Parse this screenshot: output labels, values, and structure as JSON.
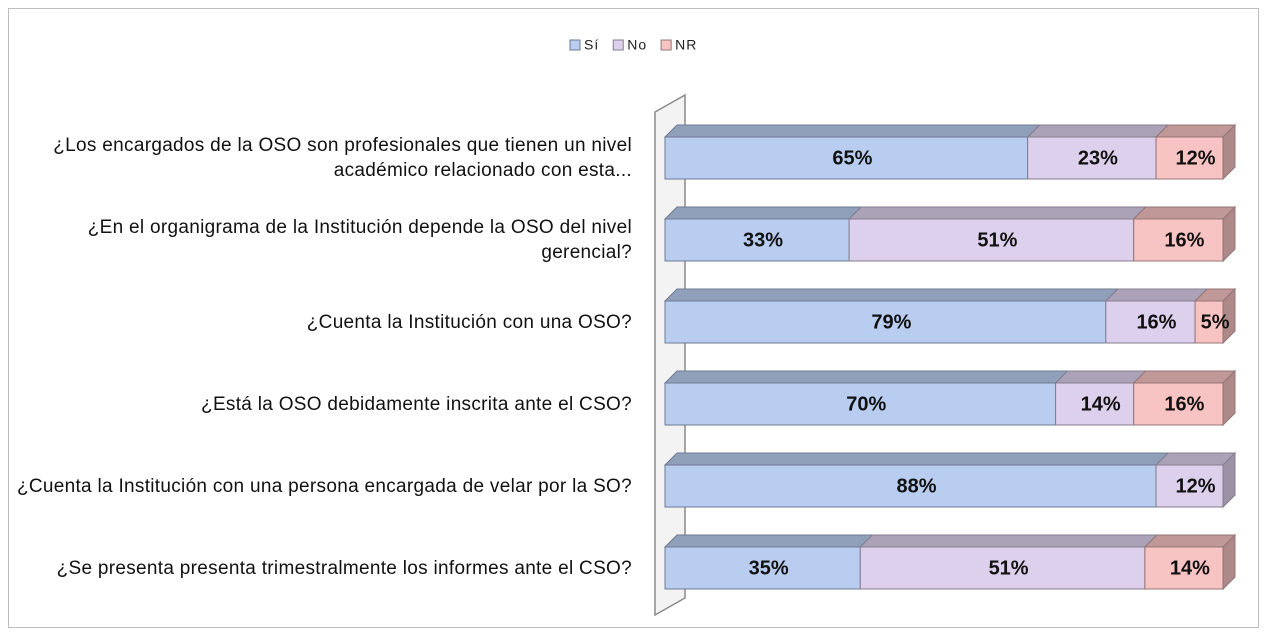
{
  "chart_data": {
    "type": "stacked-bar-horizontal",
    "categories": [
      "¿Los encargados de la OSO son profesionales que tienen un nivel académico relacionado con esta...",
      "¿En el organigrama de la Institución depende la OSO del nivel gerencial?",
      "¿Cuenta la Institución con una OSO?",
      "¿Está la OSO debidamente inscrita ante el CSO?",
      "¿Cuenta la Institución con una persona encargada de velar por la SO?",
      "¿Se presenta presenta trimestralmente los informes ante el CSO?"
    ],
    "series": [
      {
        "name": "Sí",
        "color": "#b9cdf0",
        "values": [
          65,
          33,
          79,
          70,
          88,
          35
        ],
        "value_labels": [
          "65%",
          "33%",
          "79%",
          "70%",
          "88%",
          "35%"
        ]
      },
      {
        "name": "No",
        "color": "#ddd0ec",
        "values": [
          23,
          51,
          16,
          14,
          12,
          51
        ],
        "value_labels": [
          "23%",
          "51%",
          "16%",
          "14%",
          "12%",
          "51%"
        ]
      },
      {
        "name": "NR",
        "color": "#f7c3c3",
        "values": [
          12,
          16,
          5,
          16,
          null,
          14
        ],
        "value_labels": [
          "12%",
          "16%",
          "5%",
          "16%",
          null,
          "14%"
        ]
      }
    ],
    "xlim": [
      0,
      100
    ],
    "legend": "top"
  }
}
